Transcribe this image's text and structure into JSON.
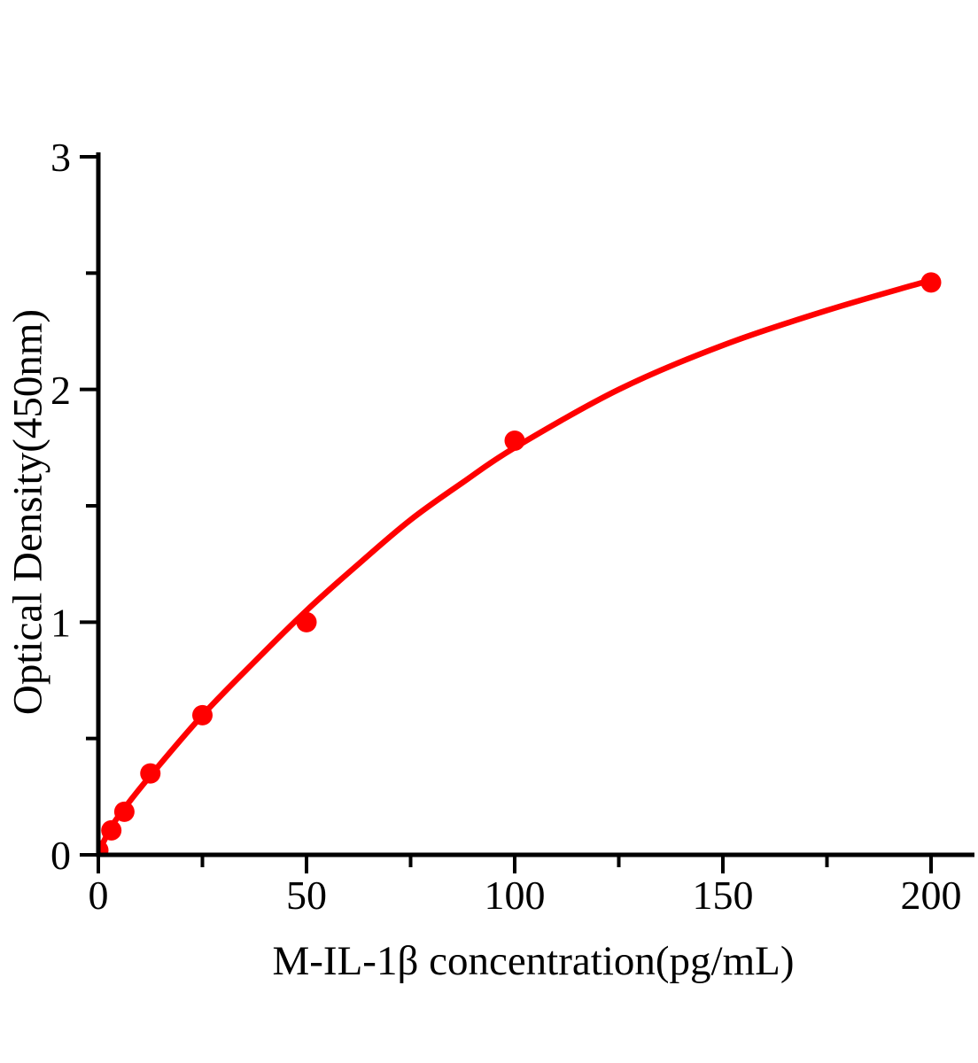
{
  "figure": {
    "background_color": "#ffffff",
    "axis_color": "#000000",
    "series_color": "#ff0000"
  },
  "chart_data": {
    "type": "scatter",
    "title": "",
    "xlabel": "M-IL-1β concentration(pg/mL)",
    "ylabel": "Optical Density(450nm)",
    "xlim": [
      0,
      210
    ],
    "ylim": [
      0,
      3
    ],
    "grid": false,
    "legend": null,
    "x_axis": {
      "major_ticks": [
        0,
        50,
        100,
        150,
        200
      ],
      "minor_ticks": [
        25,
        75,
        125,
        175
      ],
      "tick_labels": [
        "0",
        "50",
        "100",
        "150",
        "200"
      ]
    },
    "y_axis": {
      "major_ticks": [
        0,
        1,
        2,
        3
      ],
      "minor_ticks": [
        0.5,
        1.5,
        2.5
      ],
      "tick_labels": [
        "0",
        "1",
        "2",
        "3"
      ]
    },
    "series": [
      {
        "name": "standard-points",
        "type": "scatter",
        "marker": "circle",
        "color": "#ff0000",
        "points": [
          {
            "x": 0,
            "y": 0.02
          },
          {
            "x": 3.125,
            "y": 0.105
          },
          {
            "x": 6.25,
            "y": 0.185
          },
          {
            "x": 12.5,
            "y": 0.35
          },
          {
            "x": 25,
            "y": 0.6
          },
          {
            "x": 50,
            "y": 1.0
          },
          {
            "x": 100,
            "y": 1.78
          },
          {
            "x": 200,
            "y": 2.46
          }
        ]
      },
      {
        "name": "fitted-curve",
        "type": "line",
        "color": "#ff0000",
        "points": [
          {
            "x": 0,
            "y": 0.01
          },
          {
            "x": 3.125,
            "y": 0.12
          },
          {
            "x": 6.25,
            "y": 0.2
          },
          {
            "x": 12.5,
            "y": 0.34
          },
          {
            "x": 25,
            "y": 0.6
          },
          {
            "x": 37.5,
            "y": 0.83
          },
          {
            "x": 50,
            "y": 1.05
          },
          {
            "x": 62.5,
            "y": 1.25
          },
          {
            "x": 75,
            "y": 1.44
          },
          {
            "x": 87.5,
            "y": 1.6
          },
          {
            "x": 100,
            "y": 1.75
          },
          {
            "x": 125,
            "y": 2.0
          },
          {
            "x": 150,
            "y": 2.19
          },
          {
            "x": 175,
            "y": 2.34
          },
          {
            "x": 200,
            "y": 2.47
          }
        ]
      }
    ]
  }
}
